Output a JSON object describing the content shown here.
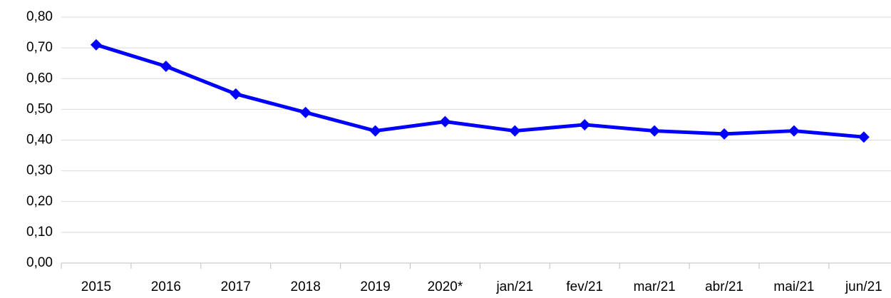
{
  "chart_data": {
    "type": "line",
    "categories": [
      "2015",
      "2016",
      "2017",
      "2018",
      "2019",
      "2020*",
      "jan/21",
      "fev/21",
      "mar/21",
      "abr/21",
      "mai/21",
      "jun/21"
    ],
    "series": [
      {
        "color": "#0000ff",
        "values": [
          0.71,
          0.64,
          0.55,
          0.49,
          0.43,
          0.46,
          0.43,
          0.45,
          0.43,
          0.42,
          0.43,
          0.41
        ]
      }
    ],
    "ylim": [
      0,
      0.8
    ],
    "yticks": [
      {
        "value": 0,
        "label": "0,00"
      },
      {
        "value": 0.1,
        "label": "0,10"
      },
      {
        "value": 0.2,
        "label": "0,20"
      },
      {
        "value": 0.3,
        "label": "0,30"
      },
      {
        "value": 0.4,
        "label": "0,40"
      },
      {
        "value": 0.5,
        "label": "0,50"
      },
      {
        "value": 0.6,
        "label": "0,60"
      },
      {
        "value": 0.7,
        "label": "0,70"
      },
      {
        "value": 0.8,
        "label": "0,80"
      }
    ],
    "grid": true
  }
}
